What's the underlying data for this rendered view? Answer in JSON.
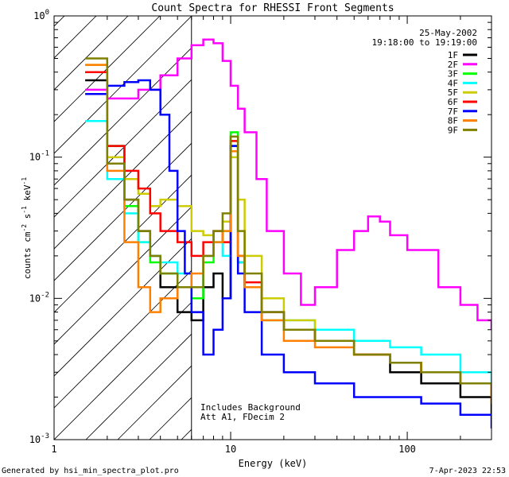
{
  "chart_data": {
    "type": "line",
    "title": "Count Spectra for RHESSI Front Segments",
    "xlabel": "Energy (keV)",
    "ylabel_parts": [
      "counts cm",
      "-2",
      " s",
      "-1",
      " keV",
      "-1"
    ],
    "xlim": [
      1,
      300
    ],
    "ylim": [
      0.001,
      1
    ],
    "xscale": "log",
    "yscale": "log",
    "x_ticks": [
      {
        "value": 1,
        "label": "1"
      },
      {
        "value": 10,
        "label": "10"
      },
      {
        "value": 100,
        "label": "100"
      }
    ],
    "y_ticks": [
      {
        "value": 1,
        "base": "10",
        "exp": "0"
      },
      {
        "value": 0.1,
        "base": "10",
        "exp": "-1"
      },
      {
        "value": 0.01,
        "base": "10",
        "exp": "-2"
      },
      {
        "value": 0.001,
        "base": "10",
        "exp": "-3"
      }
    ],
    "date": "25-May-2002",
    "time_range": "19:18:00 to 19:19:00",
    "annotation_lines": [
      "Includes Background",
      "Att A1, FDecim 2"
    ],
    "shaded_region": {
      "x_from": 1,
      "x_to": 6,
      "pattern": "diagonal-hatch"
    },
    "legend_position": "top-right",
    "series": [
      {
        "name": "1F",
        "color": "#000000",
        "x": [
          1.5,
          2,
          2.5,
          3,
          3.5,
          4,
          5,
          6,
          7,
          8,
          9,
          10,
          11,
          12,
          15,
          20,
          30,
          50,
          80,
          120,
          200,
          300
        ],
        "y": [
          0.35,
          0.12,
          0.05,
          0.03,
          0.02,
          0.012,
          0.008,
          0.007,
          0.012,
          0.015,
          0.01,
          0.12,
          0.018,
          0.012,
          0.008,
          0.006,
          0.005,
          0.004,
          0.003,
          0.0025,
          0.002,
          0.0015
        ]
      },
      {
        "name": "2F",
        "color": "#ff00ff",
        "x": [
          1.5,
          2,
          3,
          4,
          5,
          6,
          7,
          8,
          9,
          10,
          11,
          12,
          14,
          16,
          20,
          25,
          30,
          40,
          50,
          60,
          70,
          80,
          100,
          150,
          200,
          250,
          300
        ],
        "y": [
          0.3,
          0.26,
          0.3,
          0.38,
          0.5,
          0.62,
          0.68,
          0.64,
          0.48,
          0.32,
          0.22,
          0.15,
          0.07,
          0.03,
          0.015,
          0.009,
          0.012,
          0.022,
          0.03,
          0.038,
          0.035,
          0.028,
          0.022,
          0.012,
          0.009,
          0.007,
          0.006
        ]
      },
      {
        "name": "3F",
        "color": "#00ff00",
        "x": [
          1.5,
          2,
          2.5,
          3,
          3.5,
          4,
          5,
          6,
          7,
          8,
          9,
          10,
          11,
          12,
          15,
          20,
          30,
          50,
          80,
          120,
          200,
          300
        ],
        "y": [
          0.4,
          0.12,
          0.045,
          0.025,
          0.018,
          0.015,
          0.012,
          0.01,
          0.018,
          0.025,
          0.03,
          0.15,
          0.02,
          0.012,
          0.007,
          0.006,
          0.005,
          0.004,
          0.0035,
          0.003,
          0.0025,
          0.0018
        ]
      },
      {
        "name": "4F",
        "color": "#00ffff",
        "x": [
          1.5,
          2,
          2.5,
          3,
          3.5,
          4,
          5,
          6,
          7,
          8,
          9,
          10,
          11,
          12,
          15,
          20,
          30,
          50,
          80,
          120,
          200,
          300
        ],
        "y": [
          0.18,
          0.07,
          0.04,
          0.025,
          0.02,
          0.018,
          0.015,
          0.012,
          0.02,
          0.025,
          0.02,
          0.12,
          0.018,
          0.012,
          0.008,
          0.007,
          0.006,
          0.005,
          0.0045,
          0.004,
          0.003,
          0.002
        ]
      },
      {
        "name": "5F",
        "color": "#cccc00",
        "x": [
          1.5,
          2,
          2.5,
          3,
          3.5,
          4,
          5,
          6,
          7,
          8,
          9,
          10,
          11,
          12,
          15,
          20,
          30,
          50,
          80,
          120,
          200,
          300
        ],
        "y": [
          0.45,
          0.1,
          0.07,
          0.055,
          0.045,
          0.05,
          0.045,
          0.03,
          0.028,
          0.03,
          0.035,
          0.1,
          0.05,
          0.02,
          0.01,
          0.007,
          0.005,
          0.004,
          0.0035,
          0.003,
          0.0025,
          0.002
        ]
      },
      {
        "name": "6F",
        "color": "#ff0000",
        "x": [
          1.5,
          2,
          2.5,
          3,
          3.5,
          4,
          5,
          6,
          7,
          8,
          9,
          10,
          11,
          12,
          15,
          20,
          30,
          50,
          80,
          120,
          200,
          300
        ],
        "y": [
          0.4,
          0.12,
          0.08,
          0.06,
          0.04,
          0.03,
          0.025,
          0.02,
          0.025,
          0.03,
          0.025,
          0.13,
          0.02,
          0.013,
          0.008,
          0.006,
          0.005,
          0.004,
          0.0035,
          0.003,
          0.0025,
          0.0018
        ]
      },
      {
        "name": "7F",
        "color": "#0000ff",
        "x": [
          1.5,
          2,
          2.5,
          3,
          3.5,
          4,
          4.5,
          5,
          5.5,
          6,
          7,
          8,
          9,
          10,
          11,
          12,
          15,
          20,
          30,
          50,
          80,
          120,
          200,
          300
        ],
        "y": [
          0.28,
          0.32,
          0.34,
          0.35,
          0.3,
          0.2,
          0.08,
          0.03,
          0.015,
          0.008,
          0.004,
          0.006,
          0.01,
          0.12,
          0.015,
          0.008,
          0.004,
          0.003,
          0.0025,
          0.002,
          0.002,
          0.0018,
          0.0015,
          0.0012
        ]
      },
      {
        "name": "8F",
        "color": "#ff8000",
        "x": [
          1.5,
          2,
          2.5,
          3,
          3.5,
          4,
          5,
          6,
          7,
          8,
          9,
          10,
          11,
          12,
          15,
          20,
          30,
          50,
          80,
          120,
          200,
          300
        ],
        "y": [
          0.45,
          0.08,
          0.025,
          0.012,
          0.008,
          0.01,
          0.012,
          0.015,
          0.02,
          0.025,
          0.03,
          0.11,
          0.02,
          0.012,
          0.007,
          0.005,
          0.0045,
          0.004,
          0.0035,
          0.003,
          0.0025,
          0.002
        ]
      },
      {
        "name": "9F",
        "color": "#808000",
        "x": [
          1.5,
          2,
          2.5,
          3,
          3.5,
          4,
          5,
          6,
          7,
          8,
          9,
          10,
          11,
          12,
          15,
          20,
          30,
          50,
          80,
          120,
          200,
          300
        ],
        "y": [
          0.5,
          0.09,
          0.05,
          0.03,
          0.02,
          0.015,
          0.012,
          0.012,
          0.02,
          0.03,
          0.04,
          0.14,
          0.03,
          0.015,
          0.008,
          0.006,
          0.005,
          0.004,
          0.0035,
          0.003,
          0.0025,
          0.002
        ]
      }
    ]
  },
  "footer": {
    "generated_by": "Generated by hsi_min_spectra_plot.pro",
    "timestamp": "7-Apr-2023 22:53"
  }
}
